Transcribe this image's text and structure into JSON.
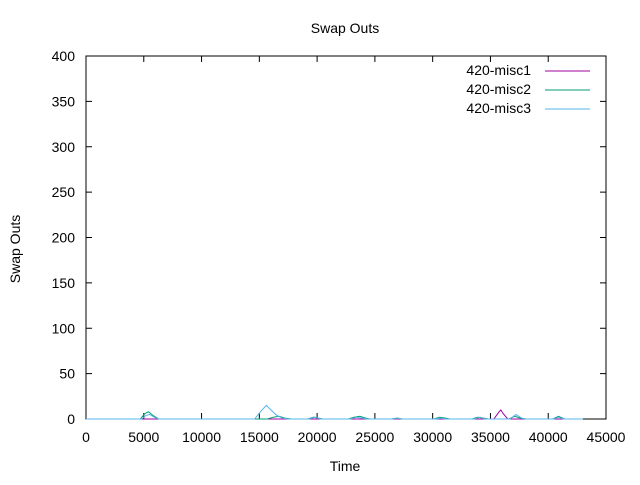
{
  "chart_data": {
    "type": "line",
    "title": "Swap Outs",
    "xlabel": "Time",
    "ylabel": "Swap Outs",
    "xlim": [
      0,
      45000
    ],
    "ylim": [
      0,
      400
    ],
    "xticks": [
      0,
      5000,
      10000,
      15000,
      20000,
      25000,
      30000,
      35000,
      40000,
      45000
    ],
    "yticks": [
      0,
      50,
      100,
      150,
      200,
      250,
      300,
      350,
      400
    ],
    "grid": false,
    "legend_position": "top-right",
    "series": [
      {
        "name": "420-misc1",
        "color": "#a0009f",
        "points": [
          [
            0,
            0
          ],
          [
            35300,
            0
          ],
          [
            35700,
            7
          ],
          [
            35900,
            10
          ],
          [
            36100,
            6
          ],
          [
            36500,
            0
          ],
          [
            43000,
            0
          ]
        ]
      },
      {
        "name": "420-misc2",
        "color": "#009e73",
        "points": [
          [
            0,
            0
          ],
          [
            4700,
            0
          ],
          [
            5100,
            6
          ],
          [
            5400,
            8
          ],
          [
            5800,
            4
          ],
          [
            6300,
            0
          ],
          [
            15700,
            0
          ],
          [
            16200,
            2
          ],
          [
            16700,
            3
          ],
          [
            17200,
            1
          ],
          [
            17800,
            0
          ],
          [
            19200,
            0
          ],
          [
            19700,
            2
          ],
          [
            20100,
            1
          ],
          [
            20500,
            0
          ],
          [
            22700,
            0
          ],
          [
            23200,
            2
          ],
          [
            23700,
            3
          ],
          [
            24200,
            1
          ],
          [
            24600,
            0
          ],
          [
            26400,
            0
          ],
          [
            26900,
            1
          ],
          [
            27300,
            0
          ],
          [
            30100,
            0
          ],
          [
            30600,
            2
          ],
          [
            31100,
            1
          ],
          [
            31500,
            0
          ],
          [
            33400,
            0
          ],
          [
            33900,
            2
          ],
          [
            34400,
            1
          ],
          [
            34800,
            0
          ],
          [
            36600,
            0
          ],
          [
            37100,
            3
          ],
          [
            37600,
            1
          ],
          [
            38000,
            0
          ],
          [
            40400,
            0
          ],
          [
            40900,
            3
          ],
          [
            41400,
            0
          ],
          [
            43000,
            0
          ]
        ]
      },
      {
        "name": "420-misc3",
        "color": "#56b4e9",
        "points": [
          [
            0,
            0
          ],
          [
            4800,
            0
          ],
          [
            5200,
            4
          ],
          [
            5500,
            5
          ],
          [
            5900,
            2
          ],
          [
            6300,
            0
          ],
          [
            14600,
            0
          ],
          [
            15100,
            8
          ],
          [
            15600,
            15
          ],
          [
            16000,
            10
          ],
          [
            16500,
            4
          ],
          [
            17000,
            1
          ],
          [
            17500,
            0
          ],
          [
            19300,
            0
          ],
          [
            19800,
            2
          ],
          [
            20300,
            0
          ],
          [
            22900,
            0
          ],
          [
            23400,
            2
          ],
          [
            23900,
            1
          ],
          [
            24300,
            0
          ],
          [
            26500,
            0
          ],
          [
            27000,
            1
          ],
          [
            27400,
            0
          ],
          [
            30300,
            0
          ],
          [
            30700,
            1
          ],
          [
            31100,
            0
          ],
          [
            33600,
            0
          ],
          [
            34100,
            2
          ],
          [
            34500,
            0
          ],
          [
            36700,
            0
          ],
          [
            37200,
            5
          ],
          [
            37700,
            1
          ],
          [
            38100,
            0
          ],
          [
            40500,
            0
          ],
          [
            40900,
            2
          ],
          [
            41300,
            0
          ],
          [
            43000,
            0
          ]
        ]
      }
    ]
  }
}
